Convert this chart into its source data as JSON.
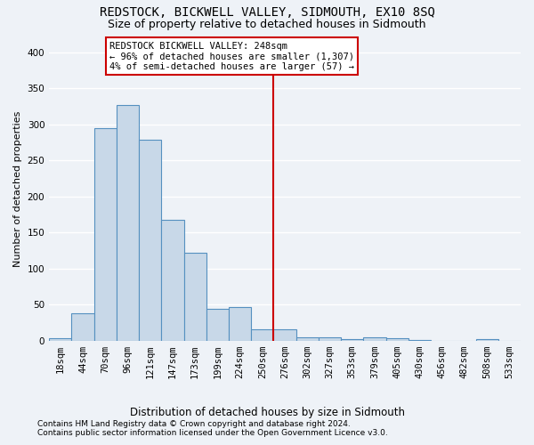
{
  "title": "REDSTOCK, BICKWELL VALLEY, SIDMOUTH, EX10 8SQ",
  "subtitle": "Size of property relative to detached houses in Sidmouth",
  "xlabel": "Distribution of detached houses by size in Sidmouth",
  "ylabel": "Number of detached properties",
  "footnote1": "Contains HM Land Registry data © Crown copyright and database right 2024.",
  "footnote2": "Contains public sector information licensed under the Open Government Licence v3.0.",
  "bin_labels": [
    "18sqm",
    "44sqm",
    "70sqm",
    "96sqm",
    "121sqm",
    "147sqm",
    "173sqm",
    "199sqm",
    "224sqm",
    "250sqm",
    "276sqm",
    "302sqm",
    "327sqm",
    "353sqm",
    "379sqm",
    "405sqm",
    "430sqm",
    "456sqm",
    "482sqm",
    "508sqm",
    "533sqm"
  ],
  "bar_heights": [
    3,
    38,
    295,
    327,
    278,
    167,
    122,
    44,
    46,
    15,
    16,
    4,
    5,
    2,
    5,
    3,
    1,
    0,
    0,
    2,
    0
  ],
  "bar_color": "#c8d8e8",
  "bar_edge_color": "#5590c0",
  "vline_x": 9.5,
  "vline_color": "#cc0000",
  "annotation_text": "REDSTOCK BICKWELL VALLEY: 248sqm\n← 96% of detached houses are smaller (1,307)\n4% of semi-detached houses are larger (57) →",
  "annotation_box_color": "#cc0000",
  "ylim": [
    0,
    420
  ],
  "yticks": [
    0,
    50,
    100,
    150,
    200,
    250,
    300,
    350,
    400
  ],
  "background_color": "#eef2f7",
  "grid_color": "#ffffff",
  "title_fontsize": 10,
  "subtitle_fontsize": 9,
  "axis_label_fontsize": 8.5,
  "tick_fontsize": 7.5,
  "annotation_fontsize": 7.5,
  "ylabel_fontsize": 8
}
